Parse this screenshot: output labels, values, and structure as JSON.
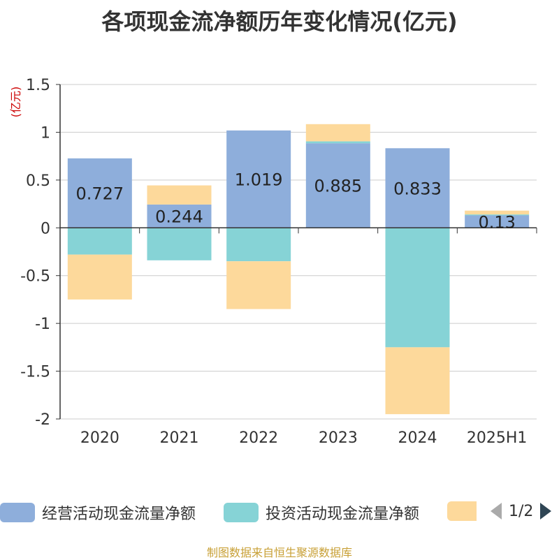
{
  "title": "各项现金流净额历年变化情况(亿元)",
  "footer": "制图数据来自恒生聚源数据库",
  "legend": {
    "items": [
      {
        "label": "经营活动现金流量净额",
        "color": "#8eaedb"
      },
      {
        "label": "投资活动现金流量净额",
        "color": "#86d3d6"
      },
      {
        "label": "",
        "color": "#fdd99b"
      }
    ],
    "page": "1/2"
  },
  "chart_data": {
    "type": "bar",
    "stacked": true,
    "ylabel": "(亿元)",
    "ylim": [
      -2,
      1.5
    ],
    "yticks": [
      1.5,
      1,
      0.5,
      0,
      -0.5,
      -1,
      -1.5,
      -2
    ],
    "grid": true,
    "categories": [
      "2020",
      "2021",
      "2022",
      "2023",
      "2024",
      "2025H1"
    ],
    "series": [
      {
        "name": "经营活动现金流量净额",
        "color": "#8eaedb",
        "values": [
          0.727,
          0.244,
          1.019,
          0.885,
          0.833,
          0.13
        ],
        "labels": [
          "0.727",
          "0.244",
          "1.019",
          "0.885",
          "0.833",
          "0.13"
        ]
      },
      {
        "name": "投资活动现金流量净额",
        "color": "#86d3d6",
        "values": [
          -0.28,
          -0.34,
          -0.35,
          0.02,
          -1.25,
          0.01
        ]
      },
      {
        "color": "#fdd99b",
        "values": [
          -0.47,
          0.2,
          -0.5,
          0.18,
          -0.7,
          0.04
        ]
      }
    ]
  }
}
